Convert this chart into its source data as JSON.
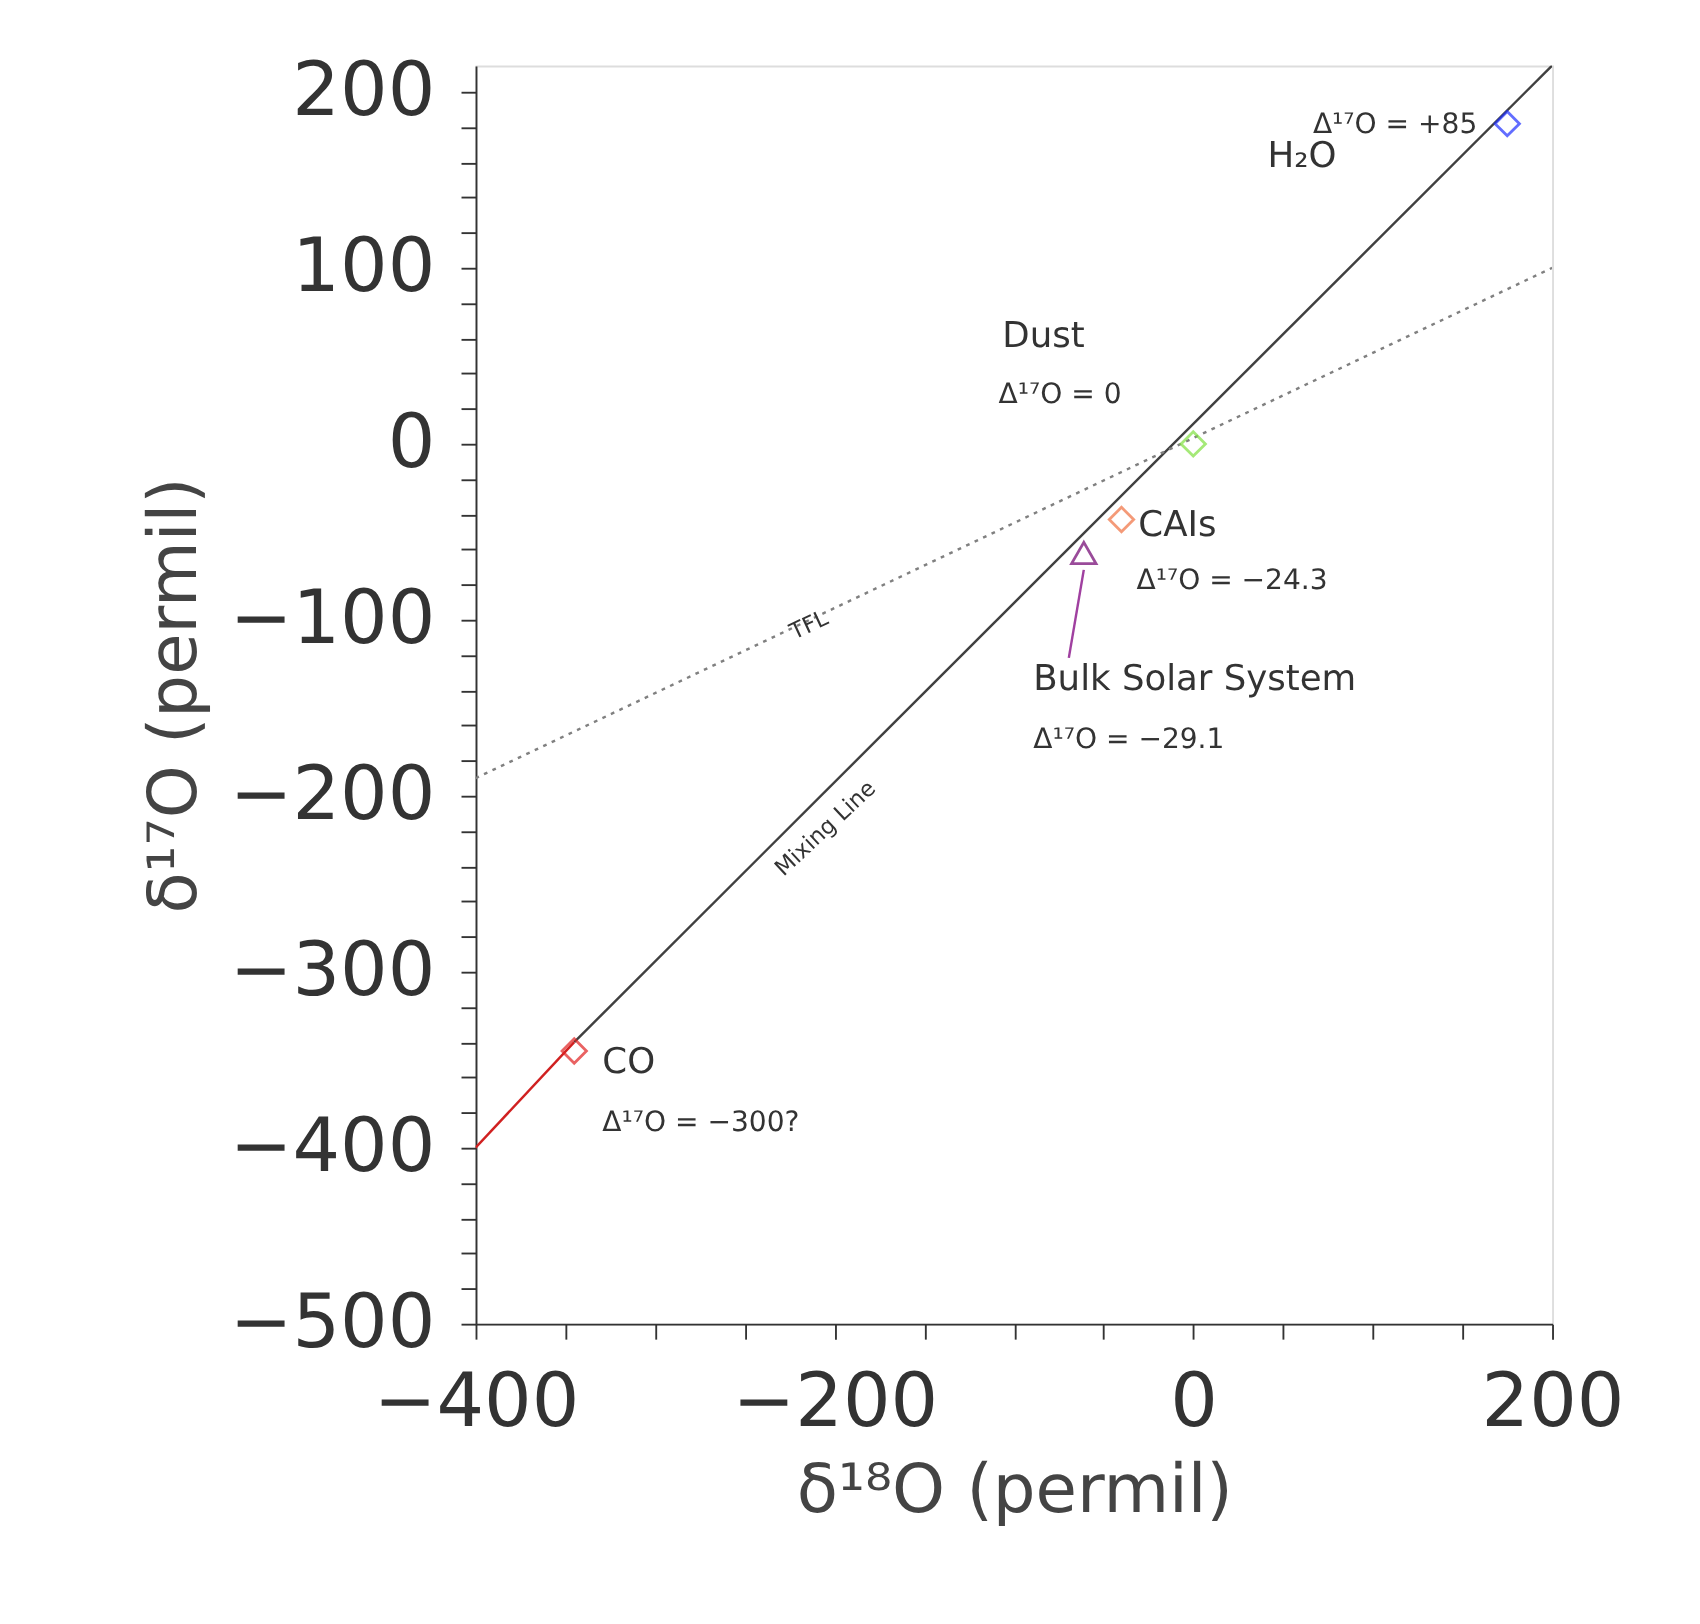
{
  "chart_data": {
    "type": "scatter",
    "xlabel": "δ¹⁸O (permil)",
    "ylabel": "δ¹⁷O (permil)",
    "xlim": [
      -400,
      200
    ],
    "ylim": [
      -500,
      215
    ],
    "xticks": [
      -400,
      {
        "value": -350,
        "label": null
      },
      {
        "value": -300,
        "label": null
      },
      {
        "value": -250,
        "label": null
      },
      -200,
      {
        "value": -150,
        "label": null
      },
      {
        "value": -100,
        "label": null
      },
      {
        "value": -50,
        "label": null
      },
      0,
      {
        "value": 50,
        "label": null
      },
      {
        "value": 100,
        "label": null
      },
      {
        "value": 150,
        "label": null
      },
      200
    ],
    "yticks": [
      -500,
      {
        "value": -480,
        "label": null
      },
      {
        "value": -460,
        "label": null
      },
      {
        "value": -440,
        "label": null
      },
      {
        "value": -420,
        "label": null
      },
      -400,
      {
        "value": -380,
        "label": null
      },
      {
        "value": -360,
        "label": null
      },
      {
        "value": -340,
        "label": null
      },
      {
        "value": -320,
        "label": null
      },
      -300,
      {
        "value": -280,
        "label": null
      },
      {
        "value": -260,
        "label": null
      },
      {
        "value": -240,
        "label": null
      },
      {
        "value": -220,
        "label": null
      },
      -200,
      {
        "value": -180,
        "label": null
      },
      {
        "value": -160,
        "label": null
      },
      {
        "value": -140,
        "label": null
      },
      {
        "value": -120,
        "label": null
      },
      -100,
      {
        "value": -80,
        "label": null
      },
      {
        "value": -60,
        "label": null
      },
      {
        "value": -40,
        "label": null
      },
      {
        "value": -20,
        "label": null
      },
      0,
      {
        "value": 20,
        "label": null
      },
      {
        "value": 40,
        "label": null
      },
      {
        "value": 60,
        "label": null
      },
      {
        "value": 80,
        "label": null
      },
      100,
      {
        "value": 120,
        "label": null
      },
      {
        "value": 140,
        "label": null
      },
      {
        "value": 160,
        "label": null
      },
      {
        "value": 180,
        "label": null
      },
      200
    ],
    "grid": false,
    "series": [
      {
        "type": "line",
        "line_style": "solid",
        "color": "#404040",
        "x": [
          -345,
          200
        ],
        "values": [
          -340,
          215
        ]
      },
      {
        "type": "line",
        "line_style": "dotted",
        "color": "#808080",
        "x": [
          -400,
          200
        ],
        "values": [
          -190,
          100
        ]
      },
      {
        "type": "line",
        "line_style": "solid",
        "color": "#d02020",
        "x": [
          -345,
          -400
        ],
        "values": [
          -340,
          -400
        ]
      },
      {
        "marker": "diamond",
        "color": "#2030ff",
        "x": [
          175
        ],
        "values": [
          182
        ]
      },
      {
        "marker": "diamond",
        "color": "#80e040",
        "x": [
          0
        ],
        "values": [
          0
        ]
      },
      {
        "marker": "diamond",
        "color": "#f07040",
        "x": [
          -40
        ],
        "values": [
          -43
        ]
      },
      {
        "marker": "triangle",
        "color": "#700070",
        "x": [
          -61
        ],
        "values": [
          -62
        ]
      },
      {
        "marker": "diamond",
        "color": "#e02020",
        "x": [
          -345
        ],
        "values": [
          -345
        ]
      }
    ],
    "annotations": [
      "Δ¹⁷O = +85",
      "H₂O",
      "Dust",
      "Δ¹⁷O = 0",
      "CAIs",
      "Δ¹⁷O = −24.3",
      {
        "text": "Bulk Solar System",
        "x": -61,
        "y": -62
      },
      "Δ¹⁷O = −29.1",
      "CO",
      "Δ¹⁷O = −300?",
      "TFL",
      "Mixing Line"
    ]
  }
}
